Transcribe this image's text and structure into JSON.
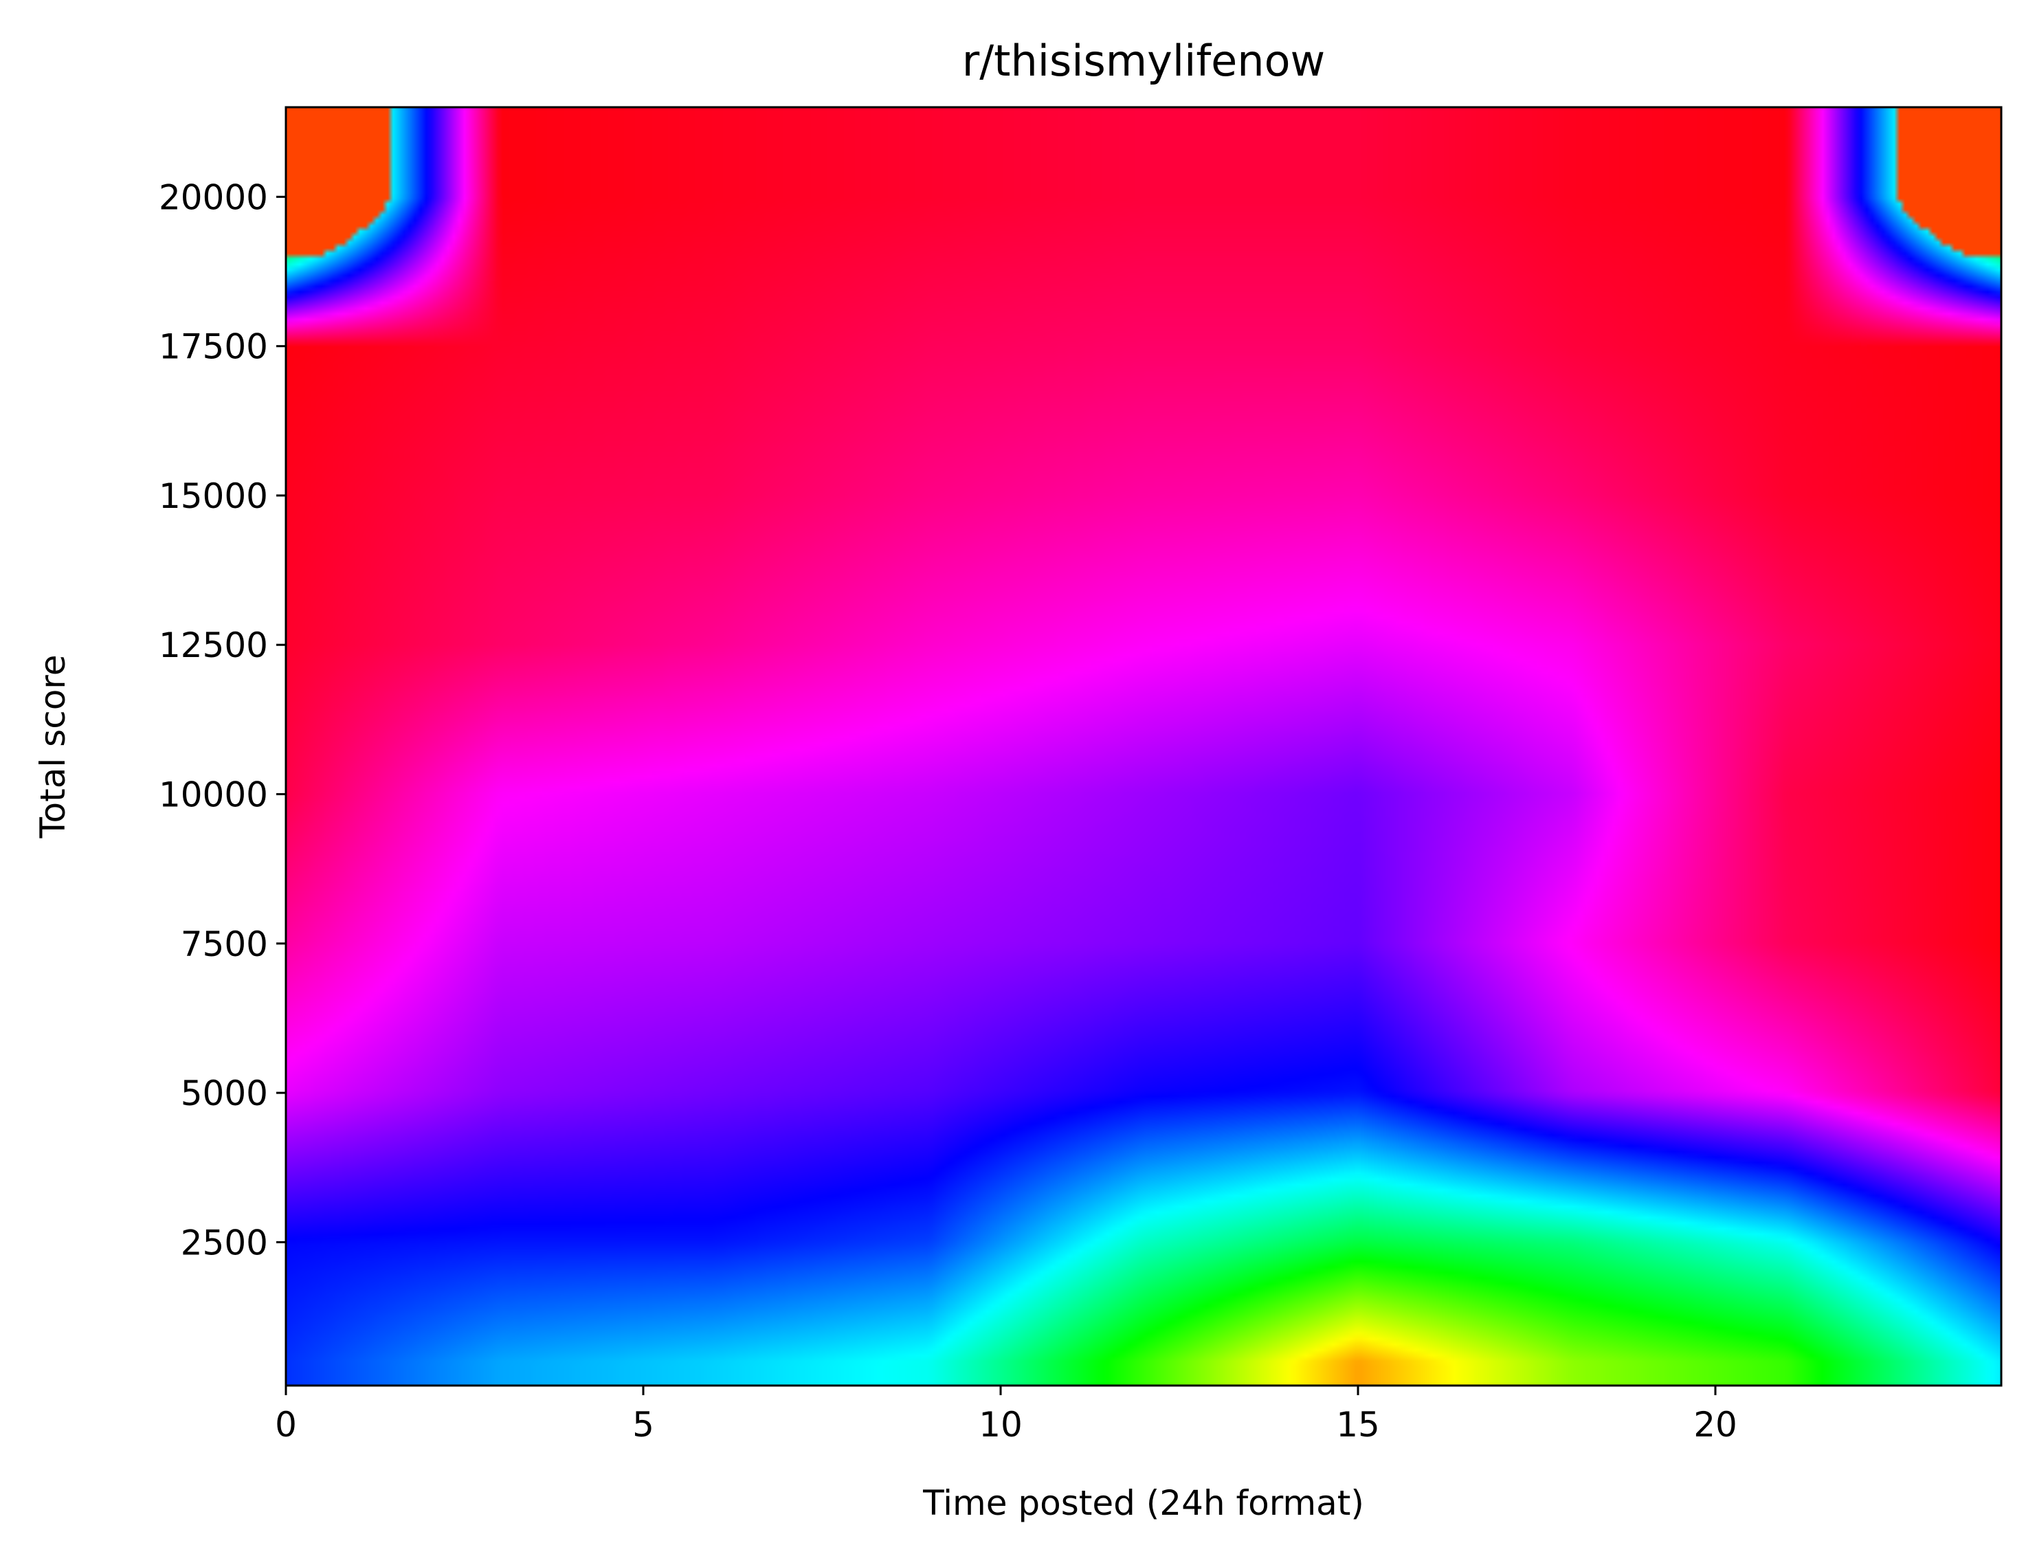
{
  "chart_data": {
    "type": "heatmap",
    "title": "r/thisismylifenow",
    "xlabel": "Time posted (24h format)",
    "ylabel": "Total score",
    "xlim": [
      0,
      24
    ],
    "ylim": [
      100,
      21500
    ],
    "x_ticks": [
      0,
      5,
      10,
      15,
      20
    ],
    "x_tick_labels": [
      "0",
      "5",
      "10",
      "15",
      "20"
    ],
    "y_ticks": [
      2500,
      5000,
      7500,
      10000,
      12500,
      15000,
      17500,
      20000
    ],
    "y_tick_labels": [
      "2500",
      "5000",
      "7500",
      "10000",
      "12500",
      "15000",
      "17500",
      "20000"
    ],
    "colormap": "gist_rainbow",
    "colorbar": false,
    "grid": false,
    "density": {
      "x": [
        0,
        3,
        6,
        9,
        12,
        15,
        18,
        21,
        24
      ],
      "y": [
        500,
        2500,
        5000,
        7500,
        10000,
        12500,
        15000,
        17500,
        20000
      ],
      "z_note": "colormap position 0 (red, low) to 1 (magenta, high)",
      "z": [
        [
          0.37,
          0.45,
          0.48,
          0.52,
          0.72,
          0.92,
          0.78,
          0.72,
          0.5
        ],
        [
          0.34,
          0.35,
          0.35,
          0.38,
          0.55,
          0.64,
          0.6,
          0.52,
          0.33
        ],
        [
          0.18,
          0.24,
          0.26,
          0.28,
          0.33,
          0.35,
          0.22,
          0.16,
          0.03
        ],
        [
          0.1,
          0.2,
          0.21,
          0.23,
          0.25,
          0.27,
          0.16,
          0.05,
          0.0
        ],
        [
          0.04,
          0.16,
          0.18,
          0.2,
          0.23,
          0.26,
          0.2,
          0.04,
          0.0
        ],
        [
          0.02,
          0.06,
          0.09,
          0.13,
          0.16,
          0.18,
          0.15,
          0.06,
          0.01
        ],
        [
          0.01,
          0.04,
          0.05,
          0.08,
          0.1,
          0.11,
          0.07,
          0.02,
          0.0
        ],
        [
          0.0,
          0.02,
          0.03,
          0.05,
          0.06,
          0.06,
          0.03,
          0.01,
          0.0
        ],
        [
          0.99,
          0.0,
          0.01,
          0.02,
          0.03,
          0.03,
          0.01,
          0.0,
          0.99
        ]
      ]
    }
  }
}
